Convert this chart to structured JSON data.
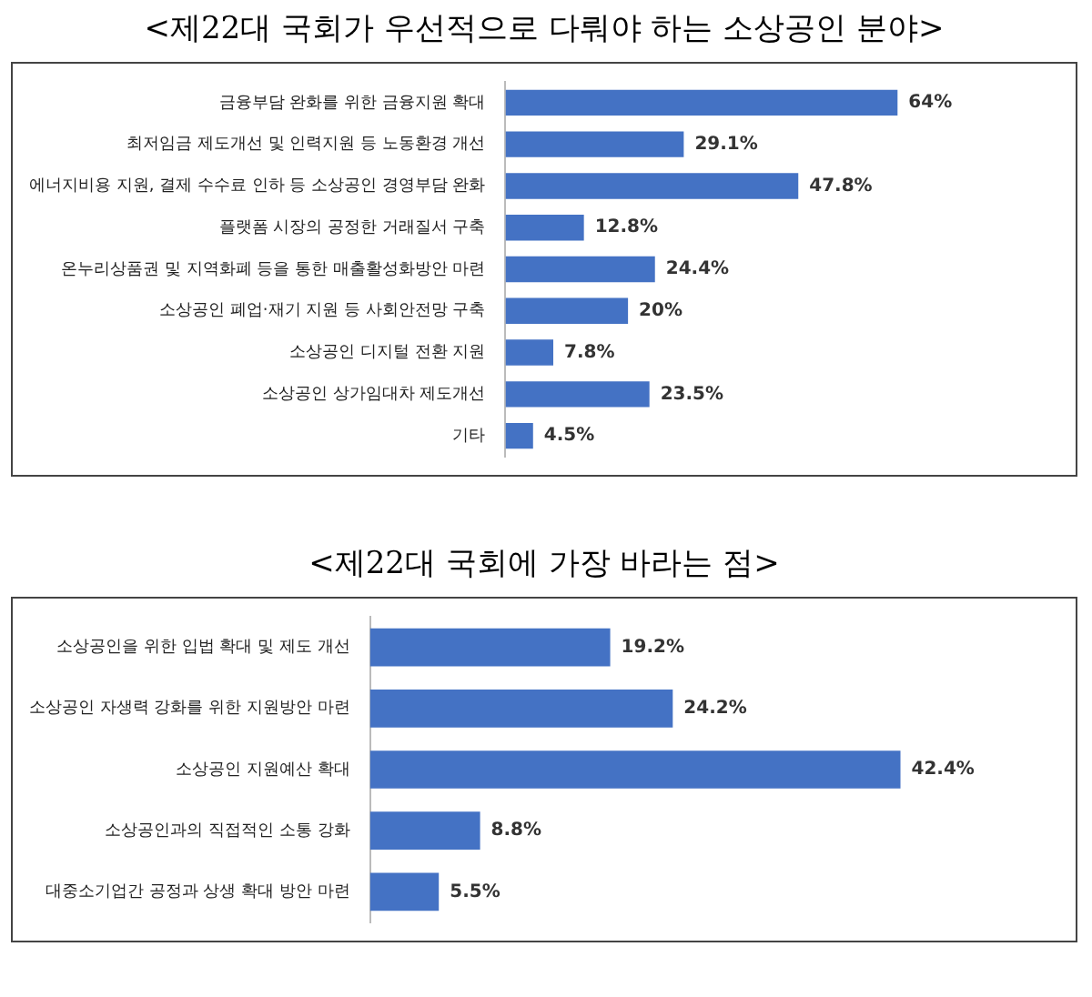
{
  "chart_data": [
    {
      "type": "bar",
      "orientation": "horizontal",
      "title": "<제22대 국회가 우선적으로 다뤄야 하는 소상공인 분야>",
      "color": "#4472c4",
      "categories": [
        "금융부담 완화를 위한 금융지원 확대",
        "최저임금 제도개선 및 인력지원 등 노동환경 개선",
        "에너지비용 지원, 결제 수수료 인하 등 소상공인 경영부담 완화",
        "플랫폼 시장의 공정한 거래질서 구축",
        "온누리상품권 및 지역화폐 등을 통한 매출활성화방안 마련",
        "소상공인 폐업·재기 지원 등 사회안전망 구축",
        "소상공인 디지털 전환 지원",
        "소상공인 상가임대차 제도개선",
        "기타"
      ],
      "values": [
        64,
        29.1,
        47.8,
        12.8,
        24.4,
        20,
        7.8,
        23.5,
        4.5
      ],
      "value_labels": [
        "64%",
        "29.1%",
        "47.8%",
        "12.8%",
        "24.4%",
        "20%",
        "7.8%",
        "23.5%",
        "4.5%"
      ]
    },
    {
      "type": "bar",
      "orientation": "horizontal",
      "title": "<제22대 국회에 가장 바라는 점>",
      "color": "#4472c4",
      "categories": [
        "소상공인을 위한 입법 확대 및 제도 개선",
        "소상공인 자생력 강화를 위한 지원방안 마련",
        "소상공인 지원예산 확대",
        "소상공인과의 직접적인 소통 강화",
        "대중소기업간 공정과 상생 확대 방안 마련"
      ],
      "values": [
        19.2,
        24.2,
        42.4,
        8.8,
        5.5
      ],
      "value_labels": [
        "19.2%",
        "24.2%",
        "42.4%",
        "8.8%",
        "5.5%"
      ]
    }
  ]
}
